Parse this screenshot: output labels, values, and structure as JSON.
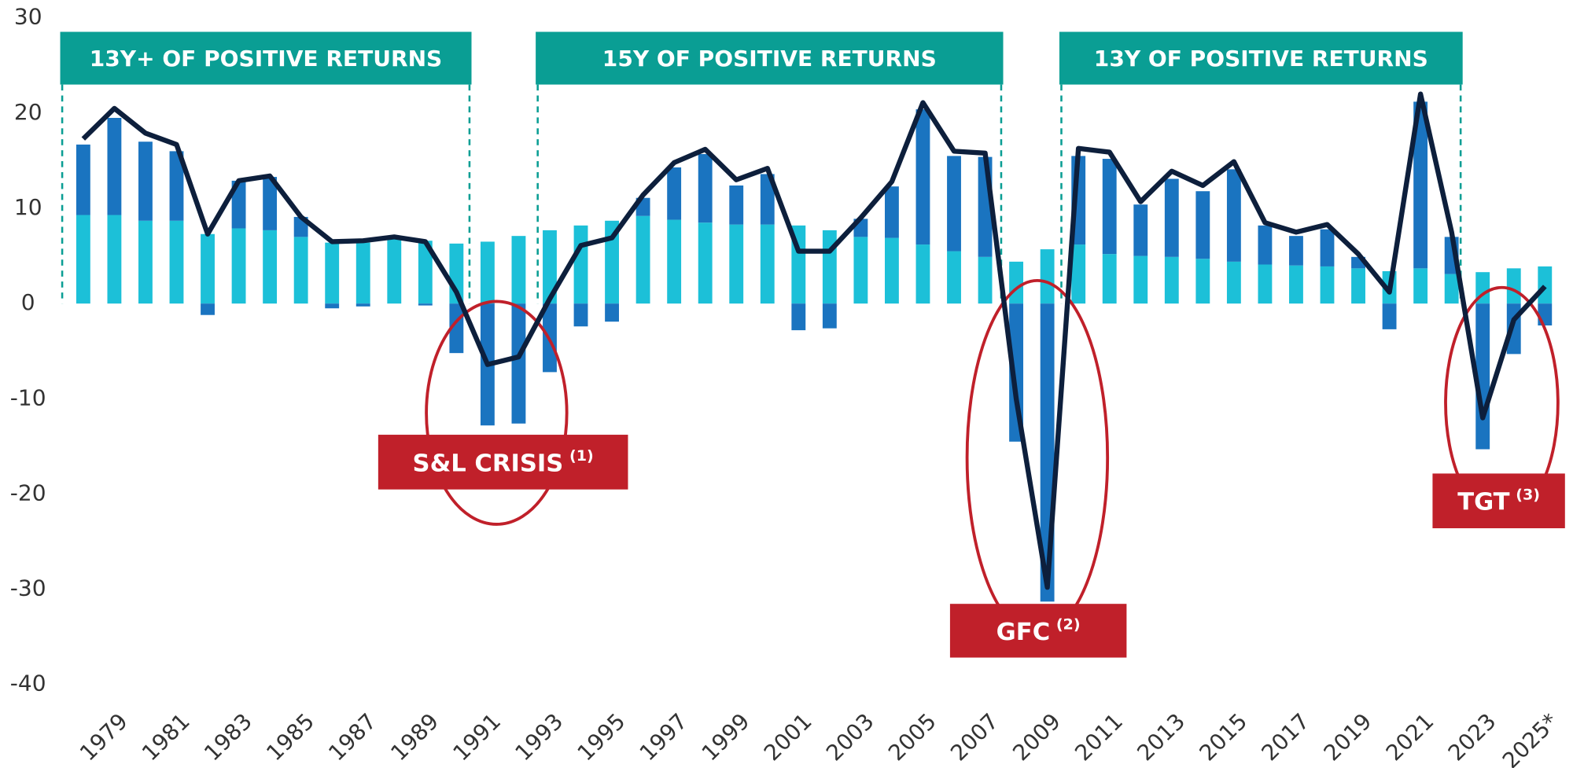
{
  "chart_data": {
    "type": "bar+line",
    "categories": [
      null,
      "1979",
      null,
      "1981",
      null,
      "1983",
      null,
      "1985",
      null,
      "1987",
      null,
      "1989",
      null,
      "1991",
      null,
      "1993",
      null,
      "1995",
      null,
      "1997",
      null,
      "1999",
      null,
      "2001",
      null,
      "2003",
      null,
      "2005",
      null,
      "2007",
      null,
      "2009",
      null,
      "2011",
      null,
      "2013",
      null,
      "2015",
      null,
      "2017",
      null,
      "2019",
      null,
      "2021",
      null,
      "2023",
      null,
      "2025*"
    ],
    "series": [
      {
        "type": "bar",
        "color": "#1cc0d8",
        "values": [
          9.3,
          9.3,
          8.7,
          8.7,
          7.3,
          7.9,
          7.7,
          7.0,
          6.4,
          6.4,
          6.8,
          6.6,
          6.3,
          6.5,
          7.1,
          7.7,
          8.2,
          8.7,
          9.2,
          8.8,
          8.5,
          8.3,
          8.3,
          8.2,
          7.7,
          7.0,
          6.9,
          6.2,
          5.5,
          4.9,
          4.4,
          5.7,
          6.2,
          5.2,
          5.0,
          4.9,
          4.7,
          4.4,
          4.1,
          4.0,
          3.9,
          3.7,
          3.4,
          3.7,
          3.1,
          3.3,
          3.7,
          3.9
        ]
      },
      {
        "type": "bar",
        "color": "#1a74c0",
        "values": [
          7.4,
          10.2,
          8.3,
          7.3,
          -1.2,
          5.0,
          5.6,
          2.1,
          -0.5,
          -0.3,
          0.2,
          -0.2,
          -5.2,
          -12.8,
          -12.6,
          -7.2,
          -2.4,
          -1.9,
          1.9,
          5.5,
          7.2,
          4.1,
          5.3,
          -2.8,
          -2.6,
          1.9,
          5.4,
          14.2,
          10.0,
          10.5,
          -14.5,
          -31.3,
          9.3,
          10.0,
          5.4,
          8.2,
          7.1,
          9.7,
          4.1,
          3.1,
          3.9,
          1.2,
          -2.7,
          17.5,
          3.9,
          -15.3,
          -5.3,
          -2.3
        ]
      },
      {
        "type": "line",
        "color": "#0d1f3c",
        "values": [
          17.3,
          20.5,
          17.9,
          16.7,
          7.3,
          12.9,
          13.4,
          9.1,
          6.5,
          6.6,
          7.0,
          6.5,
          1.2,
          -6.4,
          -5.6,
          0.5,
          6.1,
          6.9,
          11.4,
          14.8,
          16.2,
          13.0,
          14.2,
          5.5,
          5.5,
          9.0,
          12.8,
          21.1,
          16.0,
          15.8,
          -10.0,
          -29.8,
          16.3,
          15.9,
          10.7,
          13.9,
          12.4,
          14.9,
          8.5,
          7.5,
          8.3,
          5.2,
          1.2,
          22.0,
          7.5,
          -12.0,
          -1.7,
          1.8
        ]
      }
    ],
    "ylim": [
      -40,
      30
    ],
    "yticks": [
      -40,
      -30,
      -20,
      -10,
      0,
      10,
      20,
      30
    ],
    "annotations": [
      {
        "text": "13Y+ OF POSITIVE RETURNS"
      },
      {
        "text": "15Y OF POSITIVE RETURNS"
      },
      {
        "text": "13Y OF POSITIVE RETURNS"
      },
      {
        "text": "S&L CRISIS",
        "note": "(1)"
      },
      {
        "text": "GFC",
        "note": "(2)"
      },
      {
        "text": "TGT",
        "note": "(3)"
      }
    ]
  }
}
